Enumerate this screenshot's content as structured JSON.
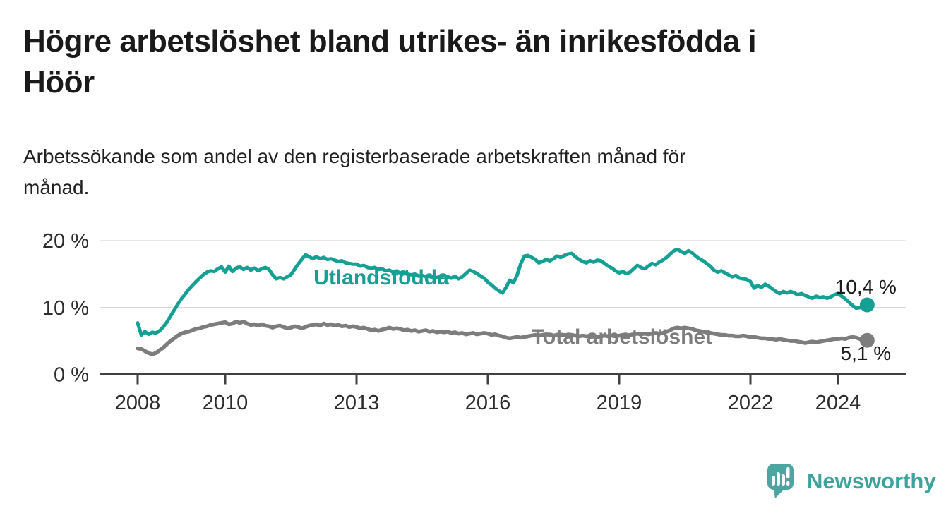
{
  "title_lines": [
    "Högre arbetslöshet bland utrikes- än inrikesfödda i",
    "Höör"
  ],
  "subtitle_lines": [
    "Arbetssökande som andel av den registerbaserade arbetskraften månad för",
    "månad."
  ],
  "branding": {
    "logo_icon": "newsworthy-speech-bubble-bar-chart-icon",
    "name": "Newsworthy"
  },
  "colors": {
    "title": "#1a1a1a",
    "subtitle": "#212121",
    "axis_text": "#2d2d2d",
    "axis_line": "#414141",
    "gridline": "#d9d9d9",
    "value_label": "#1b1b1b",
    "series_foreign_born": "#16a094",
    "series_total": "#7d7d7d",
    "logo_bubble": "#4ba6a1",
    "logo_text": "#3ea39d"
  },
  "chart_data": {
    "type": "line",
    "unit": "%",
    "x_start_year": 2008,
    "x_step_months": 1,
    "x_tick_years": [
      "2008",
      "2010",
      "2013",
      "2016",
      "2019",
      "2022",
      "2024"
    ],
    "y_ticks": [
      {
        "value": 0,
        "label": "0 %"
      },
      {
        "value": 10,
        "label": "10 %"
      },
      {
        "value": 20,
        "label": "20 %"
      }
    ],
    "ylim": [
      0,
      21
    ],
    "grid": true,
    "legend_position": "inline-labels",
    "series": [
      {
        "name": "Utlandsfödda",
        "color": "#16a094",
        "end_value": 10.4,
        "end_label": "10,4 %",
        "values": [
          7.7,
          5.9,
          6.4,
          6.0,
          6.3,
          6.2,
          6.5,
          7.1,
          7.8,
          8.7,
          9.6,
          10.5,
          11.3,
          12.0,
          12.7,
          13.3,
          13.9,
          14.4,
          14.9,
          15.3,
          15.5,
          15.4,
          15.8,
          16.1,
          15.3,
          16.2,
          15.4,
          15.9,
          16.1,
          15.7,
          16.0,
          15.6,
          15.9,
          15.5,
          15.8,
          16.0,
          15.7,
          14.9,
          14.3,
          14.5,
          14.3,
          14.6,
          14.9,
          15.7,
          16.5,
          17.2,
          17.9,
          17.6,
          17.3,
          17.6,
          17.3,
          17.5,
          17.2,
          17.3,
          17.1,
          16.9,
          17.0,
          16.7,
          16.6,
          16.5,
          16.5,
          16.2,
          16.3,
          16.0,
          15.9,
          16.0,
          15.7,
          15.8,
          15.5,
          15.6,
          15.3,
          15.4,
          15.2,
          15.3,
          15.0,
          14.9,
          15.0,
          14.7,
          14.8,
          14.6,
          14.7,
          14.4,
          14.5,
          14.6,
          14.8,
          14.6,
          14.4,
          14.7,
          14.3,
          14.6,
          15.1,
          15.6,
          15.4,
          15.1,
          14.7,
          14.4,
          13.8,
          13.4,
          12.9,
          12.5,
          12.2,
          13.0,
          14.1,
          13.7,
          14.8,
          16.5,
          17.7,
          17.8,
          17.5,
          17.2,
          16.7,
          16.9,
          17.2,
          17.0,
          17.3,
          17.7,
          17.5,
          17.8,
          18.0,
          18.1,
          17.6,
          17.2,
          16.9,
          16.7,
          17.0,
          16.8,
          17.1,
          17.0,
          16.6,
          16.2,
          15.9,
          15.5,
          15.2,
          15.4,
          15.1,
          15.3,
          15.8,
          16.3,
          16.0,
          15.8,
          16.2,
          16.6,
          16.4,
          16.8,
          17.1,
          17.5,
          18.0,
          18.5,
          18.7,
          18.4,
          18.1,
          18.5,
          18.2,
          17.7,
          17.3,
          17.0,
          16.6,
          16.2,
          15.6,
          15.3,
          15.5,
          15.2,
          14.9,
          14.6,
          14.8,
          14.4,
          14.3,
          14.2,
          13.9,
          12.9,
          13.3,
          13.0,
          13.5,
          13.2,
          12.8,
          12.4,
          12.1,
          12.4,
          12.2,
          12.4,
          12.2,
          11.9,
          12.1,
          11.8,
          11.6,
          11.4,
          11.7,
          11.5,
          11.6,
          11.4,
          11.6,
          11.9,
          12.1,
          11.7,
          11.3,
          10.8,
          10.3,
          9.9,
          10.0,
          10.2,
          10.4
        ]
      },
      {
        "name": "Total arbetslöshet",
        "color": "#7d7d7d",
        "end_value": 5.1,
        "end_label": "5,1 %",
        "values": [
          3.9,
          3.8,
          3.5,
          3.2,
          3.0,
          3.2,
          3.6,
          4.0,
          4.5,
          5.0,
          5.4,
          5.8,
          6.1,
          6.3,
          6.4,
          6.6,
          6.8,
          6.9,
          7.1,
          7.2,
          7.4,
          7.5,
          7.6,
          7.7,
          7.8,
          7.5,
          7.6,
          7.9,
          7.7,
          7.9,
          7.6,
          7.4,
          7.5,
          7.3,
          7.5,
          7.3,
          7.2,
          7.0,
          7.2,
          7.3,
          7.1,
          6.9,
          7.0,
          7.2,
          7.1,
          6.9,
          7.1,
          7.3,
          7.4,
          7.5,
          7.3,
          7.6,
          7.4,
          7.5,
          7.3,
          7.4,
          7.2,
          7.3,
          7.1,
          7.2,
          7.1,
          6.9,
          7.0,
          6.8,
          6.6,
          6.7,
          6.5,
          6.7,
          6.8,
          7.0,
          6.8,
          6.9,
          6.8,
          6.6,
          6.7,
          6.5,
          6.6,
          6.4,
          6.5,
          6.6,
          6.4,
          6.5,
          6.3,
          6.4,
          6.3,
          6.4,
          6.2,
          6.3,
          6.1,
          6.2,
          6.0,
          6.1,
          6.2,
          6.0,
          6.1,
          6.2,
          6.1,
          5.9,
          6.0,
          5.8,
          5.7,
          5.5,
          5.4,
          5.5,
          5.6,
          5.5,
          5.6,
          5.7,
          5.8,
          5.9,
          5.8,
          5.9,
          6.0,
          5.9,
          5.8,
          5.9,
          5.8,
          5.9,
          5.8,
          5.9,
          5.8,
          5.7,
          5.8,
          5.7,
          5.8,
          5.7,
          5.6,
          5.7,
          5.8,
          5.7,
          5.8,
          5.7,
          5.8,
          5.9,
          5.8,
          5.9,
          6.0,
          6.1,
          6.0,
          6.1,
          6.0,
          6.1,
          6.2,
          6.1,
          6.2,
          6.4,
          6.6,
          6.9,
          7.0,
          6.9,
          7.0,
          6.9,
          6.8,
          6.6,
          6.5,
          6.4,
          6.3,
          6.2,
          6.1,
          6.0,
          5.9,
          5.9,
          5.8,
          5.8,
          5.7,
          5.7,
          5.8,
          5.7,
          5.6,
          5.6,
          5.5,
          5.4,
          5.4,
          5.3,
          5.3,
          5.2,
          5.3,
          5.2,
          5.1,
          5.0,
          5.0,
          4.9,
          4.8,
          4.7,
          4.8,
          4.9,
          4.8,
          4.9,
          5.0,
          5.1,
          5.2,
          5.3,
          5.3,
          5.4,
          5.3,
          5.5,
          5.6,
          5.5,
          5.3,
          5.2,
          5.1
        ]
      }
    ]
  }
}
